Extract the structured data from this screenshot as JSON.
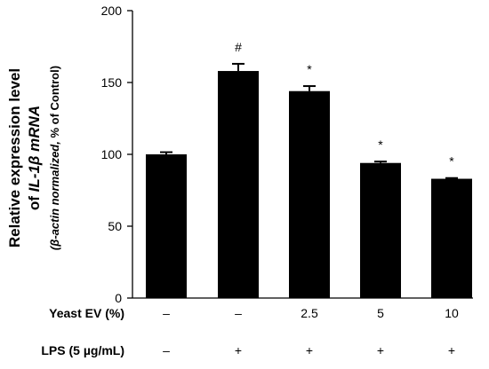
{
  "chart_data": {
    "type": "bar",
    "title": "",
    "ylabel": {
      "line1": "Relative expression level",
      "line2_prefix": "of ",
      "line2_italic": "IL-1β mRNA",
      "line3_italic": "(β-actin normalized,",
      "line3_plain": " % of Control)"
    },
    "ylim": [
      0,
      200
    ],
    "yticks": [
      "0",
      "50",
      "100",
      "150",
      "200"
    ],
    "grid": false,
    "legend": "none",
    "bar_color": "#000000",
    "values": [
      100,
      158,
      144,
      94,
      83
    ],
    "errors": [
      1.5,
      5,
      3.5,
      1,
      0.5
    ],
    "markers": [
      "",
      "#",
      "*",
      "*",
      "*"
    ],
    "treatment_rows": [
      {
        "label": "Yeast EV (%)",
        "values": [
          "–",
          "–",
          "2.5",
          "5",
          "10"
        ]
      },
      {
        "label": "LPS (5 µg/mL)",
        "values": [
          "–",
          "+",
          "+",
          "+",
          "+"
        ]
      }
    ]
  }
}
